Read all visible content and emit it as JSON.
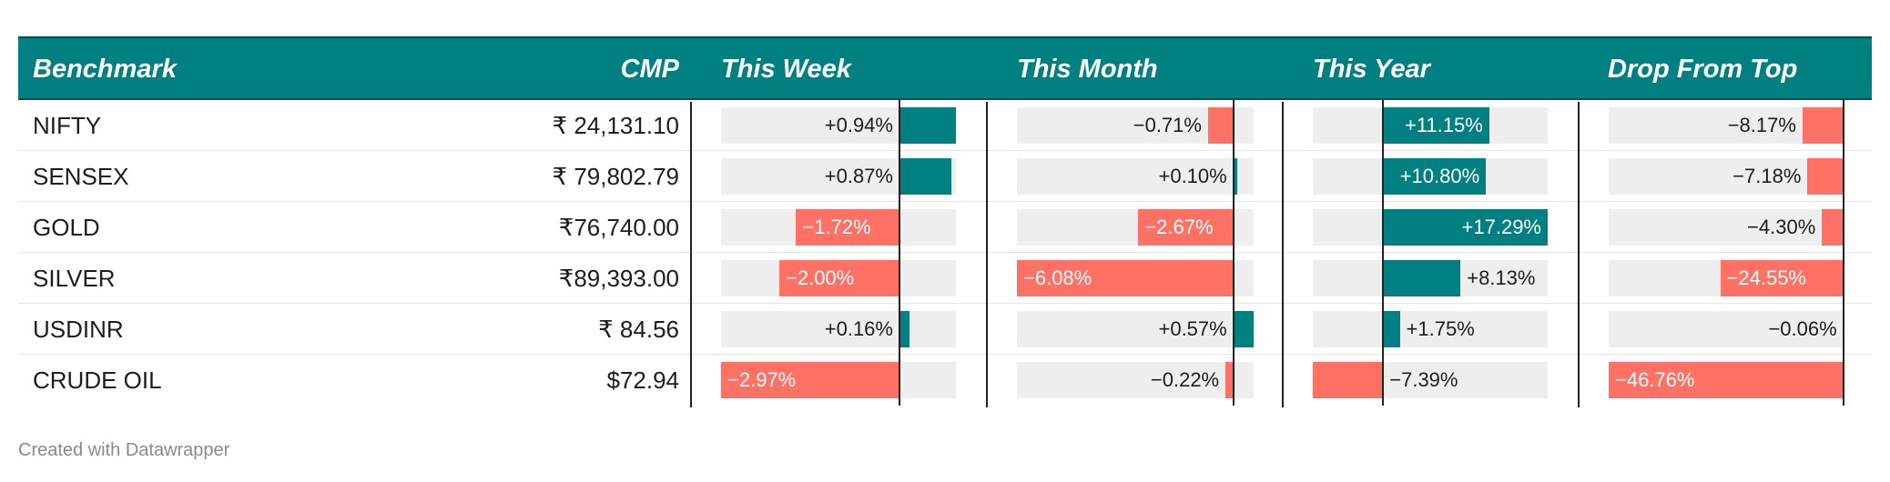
{
  "chart_data": {
    "type": "table",
    "columns": [
      "Benchmark",
      "CMP",
      "This Week",
      "This Month",
      "This Year",
      "Drop From Top"
    ],
    "rows": [
      {
        "benchmark": "NIFTY",
        "cmp": "₹ 24,131.10",
        "week": 0.94,
        "month": -0.71,
        "year": 11.15,
        "drop": -8.17,
        "week_label": "+0.94%",
        "month_label": "−0.71%",
        "year_label": "+11.15%",
        "drop_label": "−8.17%"
      },
      {
        "benchmark": "SENSEX",
        "cmp": "₹ 79,802.79",
        "week": 0.87,
        "month": 0.1,
        "year": 10.8,
        "drop": -7.18,
        "week_label": "+0.87%",
        "month_label": "+0.10%",
        "year_label": "+10.80%",
        "drop_label": "−7.18%"
      },
      {
        "benchmark": "GOLD",
        "cmp": "₹76,740.00",
        "week": -1.72,
        "month": -2.67,
        "year": 17.29,
        "drop": -4.3,
        "week_label": "−1.72%",
        "month_label": "−2.67%",
        "year_label": "+17.29%",
        "drop_label": "−4.30%"
      },
      {
        "benchmark": "SILVER",
        "cmp": "₹89,393.00",
        "week": -2.0,
        "month": -6.08,
        "year": 8.13,
        "drop": -24.55,
        "week_label": "−2.00%",
        "month_label": "−6.08%",
        "year_label": "+8.13%",
        "drop_label": "−24.55%"
      },
      {
        "benchmark": "USDINR",
        "cmp": "₹ 84.56",
        "week": 0.16,
        "month": 0.57,
        "year": 1.75,
        "drop": -0.06,
        "week_label": "+0.16%",
        "month_label": "+0.57%",
        "year_label": "+1.75%",
        "drop_label": "−0.06%"
      },
      {
        "benchmark": "CRUDE OIL",
        "cmp": "$72.94",
        "week": -2.97,
        "month": -0.22,
        "year": -7.39,
        "drop": -46.76,
        "week_label": "−2.97%",
        "month_label": "−0.22%",
        "year_label": "−7.39%",
        "drop_label": "−46.76%"
      }
    ],
    "column_ranges": {
      "week": [
        -2.97,
        0.94
      ],
      "month": [
        -6.08,
        0.57
      ],
      "year": [
        -7.39,
        17.29
      ],
      "drop": [
        -46.76,
        0
      ]
    }
  },
  "colors": {
    "header_bg": "#008080",
    "positive": "#008080",
    "negative": "#ff7164",
    "bar_bg": "#eeeeee"
  },
  "footer": {
    "credit": "Created with Datawrapper"
  }
}
